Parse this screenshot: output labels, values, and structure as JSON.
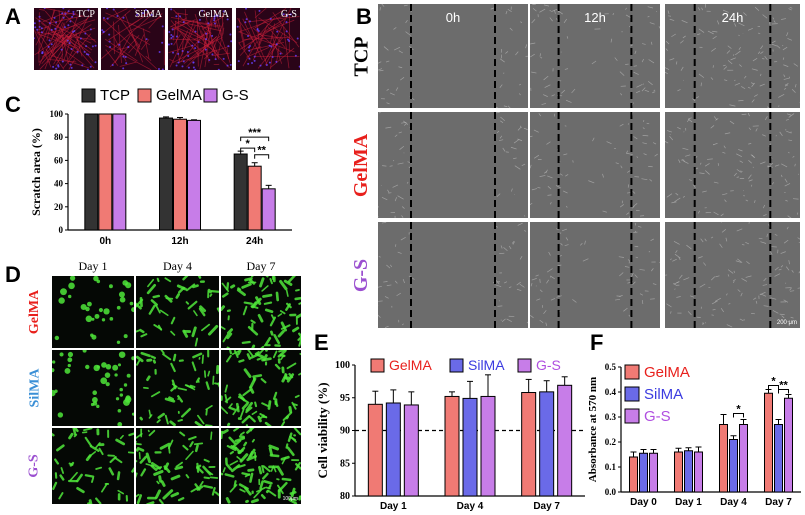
{
  "panels": {
    "A": "A",
    "B": "B",
    "C": "C",
    "D": "D",
    "E": "E",
    "F": "F"
  },
  "panelA": {
    "labels": [
      "TCP",
      "SilMA",
      "GelMA",
      "G-S"
    ],
    "scale": "—"
  },
  "panelB": {
    "times": [
      "0h",
      "12h",
      "24h"
    ],
    "rows": [
      "TCP",
      "GelMA",
      "G-S"
    ],
    "row_colors": [
      "#000000",
      "#e8201c",
      "#9b4fd0"
    ],
    "scale": "200 μm"
  },
  "panelD": {
    "days": [
      "Day 1",
      "Day 4",
      "Day 7"
    ],
    "rows": [
      "GelMA",
      "SilMA",
      "G-S"
    ],
    "row_colors": [
      "#e8201c",
      "#3a8fd6",
      "#9b4fd0"
    ],
    "scale": "100μm"
  },
  "colors": {
    "TCP": "#333333",
    "GelMA": "#f07a74",
    "SilMA": "#6a6ae8",
    "G-S": "#c77de8"
  },
  "chart_data": [
    {
      "id": "C",
      "type": "bar",
      "title": "",
      "ylabel": "Scratch area (%)",
      "xlabel": "",
      "categories": [
        "0h",
        "12h",
        "24h"
      ],
      "series": [
        {
          "name": "TCP",
          "values": [
            100,
            96.5,
            65.5
          ],
          "errors": [
            0,
            1,
            2.5
          ]
        },
        {
          "name": "GelMA",
          "values": [
            100,
            95.5,
            55
          ],
          "errors": [
            0,
            1.5,
            3
          ]
        },
        {
          "name": "G-S",
          "values": [
            100,
            94.5,
            35.5
          ],
          "errors": [
            0,
            0.5,
            3
          ]
        }
      ],
      "ylim": [
        0,
        100
      ],
      "yticks": [
        0,
        20,
        40,
        60,
        80,
        100
      ],
      "legend": "top",
      "annotations": [
        "***",
        "*",
        "**"
      ]
    },
    {
      "id": "E",
      "type": "bar",
      "title": "",
      "ylabel": "Cell viability (%)",
      "xlabel": "",
      "categories": [
        "Day 1",
        "Day 4",
        "Day 7"
      ],
      "series": [
        {
          "name": "GelMA",
          "values": [
            94,
            95.2,
            95.8
          ],
          "errors": [
            2,
            0.7,
            2
          ]
        },
        {
          "name": "SilMA",
          "values": [
            94.2,
            94.9,
            95.9
          ],
          "errors": [
            2,
            2.6,
            1.7
          ]
        },
        {
          "name": "G-S",
          "values": [
            93.9,
            95.2,
            96.9
          ],
          "errors": [
            2,
            3.3,
            1.3
          ]
        }
      ],
      "ylim": [
        80,
        100
      ],
      "yticks": [
        80,
        85,
        90,
        95,
        100
      ],
      "reference_line": 90,
      "legend": "top"
    },
    {
      "id": "F",
      "type": "bar",
      "title": "",
      "ylabel": "Absorbance at 570 nm",
      "xlabel": "",
      "categories": [
        "Day 0",
        "Day 1",
        "Day 4",
        "Day 7"
      ],
      "series": [
        {
          "name": "GelMA",
          "values": [
            0.14,
            0.16,
            0.27,
            0.395
          ],
          "errors": [
            0.02,
            0.015,
            0.04,
            0.015
          ]
        },
        {
          "name": "SilMA",
          "values": [
            0.155,
            0.165,
            0.21,
            0.27
          ],
          "errors": [
            0.015,
            0.012,
            0.015,
            0.02
          ]
        },
        {
          "name": "G-S",
          "values": [
            0.155,
            0.16,
            0.27,
            0.375
          ],
          "errors": [
            0.015,
            0.02,
            0.02,
            0.015
          ]
        }
      ],
      "ylim": [
        0,
        0.5
      ],
      "yticks": [
        0.0,
        0.1,
        0.2,
        0.3,
        0.4,
        0.5
      ],
      "legend": "top-left",
      "annotations": [
        "*",
        "*",
        "**"
      ]
    }
  ]
}
